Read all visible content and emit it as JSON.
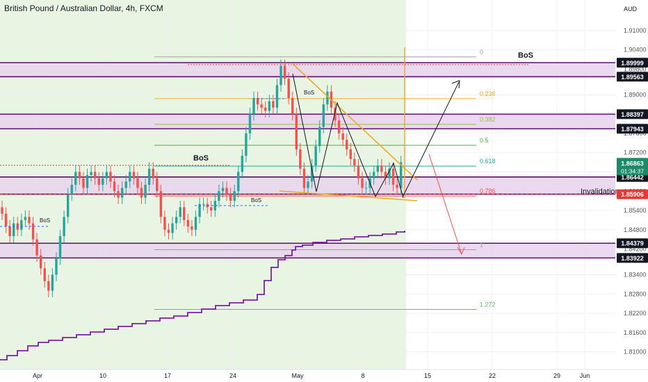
{
  "header": {
    "title": "British Pound / Australian Dollar, 4h, FXCM",
    "currency": "AUD"
  },
  "colors": {
    "up": "#26a69a",
    "down": "#ef5350",
    "zone_fill": "#e8d4ec",
    "zone_line": "#5b0f6b",
    "highlight": "#e9f5e3",
    "fib": "#f5a623",
    "purple": "#7b1fa2",
    "grid": "#eef0f3",
    "price_badge": "#1b8a66",
    "level_badge": "#131722",
    "red_badge": "#e53935",
    "arrow_red": "#ef5350"
  },
  "chart_data": {
    "type": "candlestick",
    "symbol": "GBPAUD",
    "timeframe": "4h",
    "ylim": [
      1.8045,
      1.9195
    ],
    "y_ticks": [
      "1.91000",
      "1.90400",
      "1.89800",
      "1.89000",
      "1.88400",
      "1.87800",
      "1.87200",
      "1.86600",
      "1.86000",
      "1.85400",
      "1.84800",
      "1.84200",
      "1.83400",
      "1.82800",
      "1.82200",
      "1.81600",
      "1.81000"
    ],
    "x_ticks": [
      "Apr",
      "10",
      "17",
      "24",
      "May",
      "8",
      "15",
      "22",
      "29",
      "Jun"
    ],
    "current_price": {
      "value": "1.86863",
      "countdown": "01:34:37"
    },
    "zones": [
      {
        "top": 1.89999,
        "bottom": 1.89563
      },
      {
        "top": 1.88397,
        "bottom": 1.87943
      },
      {
        "top": 1.86442,
        "bottom": 1.85906
      },
      {
        "top": 1.84379,
        "bottom": 1.83922
      }
    ],
    "price_labels": [
      "1.89999",
      "1.89563",
      "1.88397",
      "1.87943",
      "1.86442",
      "1.85906",
      "1.84379",
      "1.83922"
    ],
    "fib_levels": [
      {
        "label": "0",
        "price": 1.9018
      },
      {
        "label": "0.236",
        "price": 1.8888
      },
      {
        "label": "0.382",
        "price": 1.8808
      },
      {
        "label": "0.5",
        "price": 1.8743
      },
      {
        "label": "0.618",
        "price": 1.8678
      },
      {
        "label": "0.786",
        "price": 1.8585
      },
      {
        "label": "1",
        "price": 1.8418
      },
      {
        "label": "1.272",
        "price": 1.8232
      }
    ],
    "bos_labels": [
      "BoS",
      "BoS",
      "BoS",
      "BoS",
      "BoS"
    ],
    "annotations": {
      "invalidation": "Invalidation"
    },
    "series": [
      {
        "name": "GBPAUD",
        "kind": "candles",
        "close": [
          1.853,
          1.849,
          1.846,
          1.85,
          1.848,
          1.851,
          1.852,
          1.85,
          1.845,
          1.84,
          1.836,
          1.832,
          1.829,
          1.834,
          1.839,
          1.846,
          1.852,
          1.859,
          1.862,
          1.866,
          1.864,
          1.861,
          1.865,
          1.866,
          1.864,
          1.862,
          1.864,
          1.866,
          1.863,
          1.86,
          1.858,
          1.861,
          1.863,
          1.866,
          1.864,
          1.861,
          1.858,
          1.862,
          1.867,
          1.864,
          1.86,
          1.852,
          1.848,
          1.847,
          1.85,
          1.852,
          1.855,
          1.851,
          1.849,
          1.848,
          1.852,
          1.856,
          1.856,
          1.855,
          1.854,
          1.857,
          1.86,
          1.861,
          1.859,
          1.857,
          1.86,
          1.866,
          1.871,
          1.878,
          1.884,
          1.889,
          1.887,
          1.886,
          1.885,
          1.888,
          1.886,
          1.893,
          1.899,
          1.895,
          1.889,
          1.884,
          1.873,
          1.867,
          1.861,
          1.863,
          1.868,
          1.874,
          1.88,
          1.887,
          1.891,
          1.886,
          1.882,
          1.878,
          1.876,
          1.873,
          1.87,
          1.868,
          1.864,
          1.861,
          1.861,
          1.864,
          1.866,
          1.868,
          1.866,
          1.864,
          1.867,
          1.862,
          1.861,
          1.869
        ]
      }
    ]
  }
}
